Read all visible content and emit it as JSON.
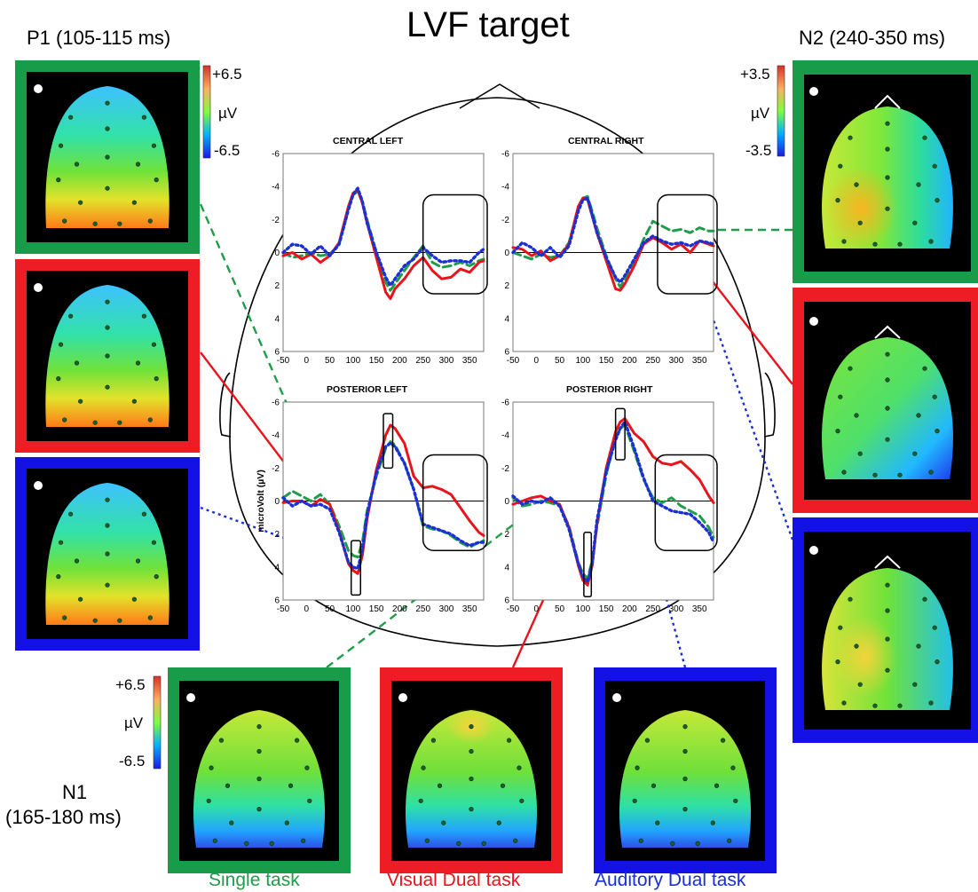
{
  "title": "LVF target",
  "windows": {
    "p1": "P1 (105-115 ms)",
    "n2": "N2 (240-350 ms)",
    "n1_line1": "N1",
    "n1_line2": "(165-180 ms)"
  },
  "legend": {
    "single": "Single task",
    "visual": "Visual Dual task",
    "auditory": "Auditory Dual task"
  },
  "colors": {
    "single": "#1f9d4a",
    "visual": "#e8141c",
    "auditory": "#1a2fd4",
    "single_frame": "#199c4a",
    "visual_frame": "#ee1c24",
    "auditory_frame": "#1411e6"
  },
  "scales": {
    "p1": {
      "max": "+6.5",
      "unit": "µV",
      "min": "-6.5"
    },
    "n2": {
      "max": "+3.5",
      "unit": "µV",
      "min": "-3.5"
    },
    "n1": {
      "max": "+6.5",
      "unit": "µV",
      "min": "-6.5"
    }
  },
  "chart_data": [
    {
      "type": "line",
      "title": "CENTRAL LEFT",
      "xlim": [
        -50,
        380
      ],
      "ylim": [
        6,
        -6
      ],
      "xticks": [
        -50,
        0,
        50,
        100,
        150,
        200,
        250,
        300,
        350
      ],
      "yticks": [
        -6,
        -4,
        -2,
        0,
        2,
        4,
        6
      ],
      "series": [
        {
          "key": "single",
          "x": [
            -50,
            -30,
            -10,
            10,
            30,
            50,
            70,
            90,
            100,
            110,
            120,
            130,
            150,
            170,
            180,
            190,
            210,
            230,
            250,
            270,
            290,
            310,
            330,
            350,
            370,
            380
          ],
          "y": [
            0,
            0.3,
            0.2,
            0,
            0.2,
            0.1,
            -0.5,
            -2.6,
            -3.5,
            -3.7,
            -3.1,
            -2,
            0,
            1.8,
            2.3,
            1.9,
            1.1,
            0.3,
            -0.4,
            0.6,
            0.9,
            0.8,
            0.6,
            0.8,
            0.5,
            0.4
          ]
        },
        {
          "key": "visual",
          "x": [
            -50,
            -30,
            -10,
            10,
            30,
            50,
            70,
            90,
            100,
            110,
            120,
            130,
            150,
            170,
            180,
            190,
            210,
            230,
            250,
            270,
            290,
            310,
            330,
            350,
            370,
            380
          ],
          "y": [
            0.2,
            0,
            0.4,
            0.1,
            0.6,
            0.2,
            -0.6,
            -2.8,
            -3.6,
            -3.8,
            -3,
            -1.8,
            0.3,
            2.4,
            2.8,
            2.2,
            1.6,
            0.8,
            0.3,
            1.1,
            1.6,
            1.5,
            1,
            1.2,
            0.6,
            0.5
          ]
        },
        {
          "key": "auditory",
          "x": [
            -50,
            -30,
            -10,
            10,
            30,
            50,
            70,
            90,
            100,
            110,
            120,
            130,
            150,
            170,
            180,
            190,
            210,
            230,
            250,
            270,
            290,
            310,
            330,
            350,
            370,
            380
          ],
          "y": [
            0,
            -0.5,
            -0.4,
            0.1,
            -0.4,
            0.2,
            -0.5,
            -2.6,
            -3.5,
            -3.9,
            -3.1,
            -1.8,
            0,
            1.5,
            2,
            1.6,
            0.8,
            0.4,
            -0.3,
            0.2,
            0.6,
            0.5,
            0.5,
            0.6,
            0,
            -0.2
          ]
        }
      ],
      "annotation_box": {
        "x": [
          250,
          390
        ],
        "y": [
          -3.5,
          2.5
        ]
      }
    },
    {
      "type": "line",
      "title": "CENTRAL RIGHT",
      "xlim": [
        -50,
        380
      ],
      "ylim": [
        6,
        -6
      ],
      "xticks": [
        -50,
        0,
        50,
        100,
        150,
        200,
        250,
        300,
        350
      ],
      "yticks": [
        -6,
        -4,
        -2,
        0,
        2,
        4,
        6
      ],
      "series": [
        {
          "key": "single",
          "x": [
            -50,
            -30,
            -10,
            10,
            30,
            50,
            70,
            90,
            100,
            110,
            120,
            130,
            150,
            170,
            180,
            190,
            210,
            230,
            250,
            270,
            290,
            310,
            330,
            350,
            370,
            380
          ],
          "y": [
            0,
            0.2,
            0.4,
            0.1,
            0.3,
            0.2,
            -0.6,
            -2.7,
            -3.3,
            -3.4,
            -2.5,
            -1.5,
            0.2,
            1.6,
            2.1,
            1.6,
            0.5,
            -0.8,
            -1.9,
            -1.6,
            -1.3,
            -1.4,
            -1.2,
            -1.5,
            -1.3,
            -1.3
          ]
        },
        {
          "key": "visual",
          "x": [
            -50,
            -30,
            -10,
            10,
            30,
            50,
            70,
            90,
            100,
            110,
            120,
            130,
            150,
            170,
            180,
            190,
            210,
            230,
            250,
            270,
            290,
            310,
            330,
            350,
            370,
            380
          ],
          "y": [
            -0.3,
            -0.2,
            0.2,
            -0.1,
            0.5,
            0.2,
            -0.5,
            -2.8,
            -3.3,
            -3.2,
            -2.2,
            -1.2,
            0.5,
            2.2,
            2.3,
            1.9,
            0.8,
            -0.5,
            -0.9,
            -0.6,
            -0.2,
            -0.5,
            0,
            -0.7,
            -0.5,
            -0.4
          ]
        },
        {
          "key": "auditory",
          "x": [
            -50,
            -30,
            -10,
            10,
            30,
            50,
            70,
            90,
            100,
            110,
            120,
            130,
            150,
            170,
            180,
            190,
            210,
            230,
            250,
            270,
            290,
            310,
            330,
            350,
            370,
            380
          ],
          "y": [
            0,
            -0.6,
            -0.3,
            0.2,
            -0.3,
            0.3,
            -0.4,
            -2.5,
            -3.2,
            -3.3,
            -2.3,
            -1.2,
            0.3,
            1.5,
            1.8,
            1.4,
            0.4,
            -0.6,
            -1,
            -0.7,
            -0.5,
            -0.6,
            -0.4,
            -0.7,
            -0.6,
            -0.5
          ]
        }
      ],
      "annotation_box": {
        "x": [
          260,
          390
        ],
        "y": [
          -3.5,
          2.5
        ]
      }
    },
    {
      "type": "line",
      "title": "POSTERIOR LEFT",
      "xlim": [
        -50,
        380
      ],
      "ylim": [
        6,
        -6
      ],
      "xticks": [
        -50,
        0,
        50,
        100,
        150,
        200,
        250,
        300,
        350
      ],
      "yticks": [
        -6,
        -4,
        -2,
        0,
        2,
        4,
        6
      ],
      "ylabel": "microVolt (µV)",
      "series": [
        {
          "key": "single",
          "x": [
            -50,
            -30,
            -10,
            10,
            30,
            50,
            70,
            90,
            100,
            110,
            120,
            130,
            150,
            170,
            180,
            190,
            210,
            230,
            250,
            270,
            290,
            310,
            330,
            350,
            370,
            380
          ],
          "y": [
            -0.2,
            -0.6,
            -0.3,
            0,
            -0.4,
            0.2,
            1.5,
            3,
            3.3,
            3.4,
            2.5,
            0.6,
            -1.5,
            -3.2,
            -3.6,
            -3.4,
            -2.3,
            -0.7,
            1.5,
            1.7,
            1.8,
            2.1,
            2.5,
            2.8,
            2.5,
            2.4
          ]
        },
        {
          "key": "visual",
          "x": [
            -50,
            -30,
            -10,
            10,
            30,
            50,
            70,
            90,
            100,
            110,
            120,
            130,
            150,
            170,
            180,
            190,
            210,
            230,
            250,
            270,
            290,
            310,
            330,
            350,
            370,
            380
          ],
          "y": [
            0.1,
            0,
            0,
            0.3,
            -0.1,
            0.2,
            1.8,
            3.8,
            4.2,
            4.4,
            3.3,
            1.1,
            -1.9,
            -4,
            -4.6,
            -4.4,
            -3.5,
            -1.5,
            -0.8,
            -0.9,
            -0.7,
            -0.4,
            0.4,
            1.2,
            1.9,
            2.1
          ]
        },
        {
          "key": "auditory",
          "x": [
            -50,
            -30,
            -10,
            10,
            30,
            50,
            70,
            90,
            100,
            110,
            120,
            130,
            150,
            170,
            180,
            190,
            210,
            230,
            250,
            270,
            290,
            310,
            330,
            350,
            370,
            380
          ],
          "y": [
            -0.2,
            0.3,
            0,
            0.3,
            0.2,
            0.5,
            1.9,
            3.7,
            4,
            4.1,
            3,
            0.8,
            -1.7,
            -3.3,
            -3.5,
            -3.3,
            -2.3,
            -0.7,
            1.4,
            1.6,
            1.8,
            2,
            2.4,
            2.7,
            2.5,
            2.5
          ]
        }
      ],
      "annotation_box": {
        "x": [
          250,
          390
        ],
        "y": [
          -2.8,
          3
        ]
      },
      "peak_boxes": [
        {
          "x": [
            96,
            116
          ],
          "y": [
            2.4,
            5.7
          ]
        },
        {
          "x": [
            165,
            185
          ],
          "y": [
            -5.3,
            -2
          ]
        }
      ]
    },
    {
      "type": "line",
      "title": "POSTERIOR RIGHT",
      "xlim": [
        -50,
        380
      ],
      "ylim": [
        6,
        -6
      ],
      "xticks": [
        -50,
        0,
        50,
        100,
        150,
        200,
        250,
        300,
        350
      ],
      "yticks": [
        -6,
        -4,
        -2,
        0,
        2,
        4,
        6
      ],
      "series": [
        {
          "key": "single",
          "x": [
            -50,
            -30,
            -10,
            10,
            30,
            50,
            70,
            90,
            100,
            110,
            120,
            130,
            150,
            170,
            180,
            190,
            210,
            230,
            250,
            270,
            290,
            310,
            330,
            350,
            370,
            380
          ],
          "y": [
            -0.2,
            0.3,
            0.2,
            0,
            0.1,
            0.3,
            1.5,
            3.7,
            4.4,
            4.7,
            3.6,
            1.6,
            -1.6,
            -3.8,
            -4.4,
            -4.6,
            -3,
            -1.3,
            -0.2,
            0.1,
            -0.2,
            0.3,
            0.6,
            0.9,
            1.6,
            2.2
          ]
        },
        {
          "key": "visual",
          "x": [
            -50,
            -30,
            -10,
            10,
            30,
            50,
            70,
            90,
            100,
            110,
            120,
            130,
            150,
            170,
            180,
            190,
            210,
            230,
            250,
            270,
            290,
            310,
            330,
            350,
            370,
            380
          ],
          "y": [
            0.2,
            0,
            -0.2,
            -0.3,
            0,
            0.2,
            1.6,
            3.9,
            4.8,
            5.1,
            3.9,
            1.4,
            -2,
            -4.2,
            -4.8,
            -5,
            -4.1,
            -3.6,
            -2.7,
            -2.3,
            -2.2,
            -2.4,
            -1.9,
            -1.3,
            -0.3,
            0.1
          ]
        },
        {
          "key": "auditory",
          "x": [
            -50,
            -30,
            -10,
            10,
            30,
            50,
            70,
            90,
            100,
            110,
            120,
            130,
            150,
            170,
            180,
            190,
            210,
            230,
            250,
            270,
            290,
            310,
            330,
            350,
            370,
            380
          ],
          "y": [
            -0.3,
            0.2,
            0,
            0.1,
            -0.2,
            0.3,
            1.7,
            3.8,
            4.6,
            4.9,
            3.8,
            1.2,
            -1.8,
            -3.7,
            -4.4,
            -4.8,
            -3.2,
            -1.4,
            0,
            0.3,
            0.6,
            0.7,
            0.8,
            1.3,
            1.9,
            2.5
          ]
        }
      ],
      "annotation_box": {
        "x": [
          255,
          390
        ],
        "y": [
          -2.8,
          3
        ]
      },
      "peak_boxes": [
        {
          "x": [
            102,
            118
          ],
          "y": [
            1.9,
            5.8
          ]
        },
        {
          "x": [
            170,
            190
          ],
          "y": [
            -5.6,
            -2.5
          ]
        }
      ]
    }
  ]
}
